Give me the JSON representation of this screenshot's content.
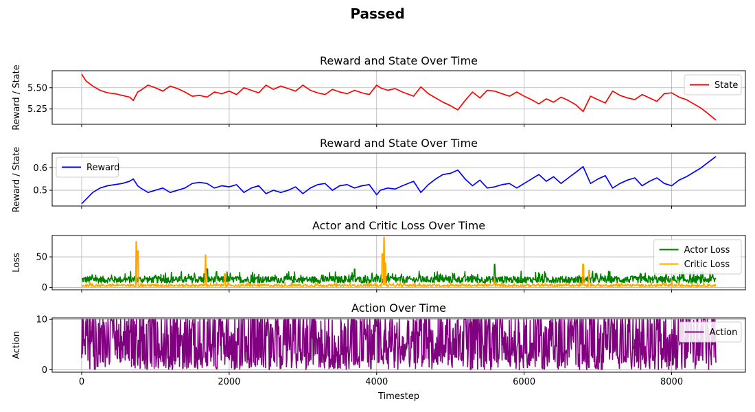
{
  "figure": {
    "title": "Passed"
  },
  "chart_data": [
    {
      "id": "state",
      "type": "line",
      "title": "Reward and State Over Time",
      "xlabel": "",
      "ylabel": "Reward / State",
      "xlim": [
        -400,
        9000
      ],
      "ylim": [
        5.07,
        5.7
      ],
      "xticks": [
        0,
        2000,
        4000,
        6000,
        8000
      ],
      "yticks": [
        5.25,
        5.5
      ],
      "ytick_labels": [
        "5.25",
        "5.50"
      ],
      "show_xtick_labels": false,
      "grid": true,
      "legend": "top-right",
      "series": [
        {
          "name": "State",
          "color": "#ff0000",
          "x": [
            0,
            60,
            150,
            250,
            350,
            450,
            550,
            650,
            700,
            760,
            800,
            900,
            1000,
            1100,
            1200,
            1300,
            1400,
            1500,
            1600,
            1700,
            1800,
            1900,
            2000,
            2100,
            2200,
            2300,
            2400,
            2500,
            2600,
            2700,
            2800,
            2900,
            3000,
            3100,
            3200,
            3300,
            3400,
            3500,
            3600,
            3700,
            3800,
            3900,
            4000,
            4050,
            4150,
            4250,
            4350,
            4500,
            4600,
            4700,
            4800,
            4900,
            5000,
            5100,
            5200,
            5300,
            5400,
            5500,
            5600,
            5700,
            5800,
            5900,
            6000,
            6100,
            6200,
            6300,
            6400,
            6500,
            6600,
            6700,
            6800,
            6900,
            7000,
            7100,
            7200,
            7300,
            7400,
            7500,
            7600,
            7700,
            7800,
            7900,
            8000,
            8100,
            8200,
            8300,
            8400,
            8500,
            8600
          ],
          "y": [
            5.66,
            5.58,
            5.52,
            5.47,
            5.44,
            5.43,
            5.41,
            5.39,
            5.35,
            5.45,
            5.47,
            5.53,
            5.5,
            5.46,
            5.52,
            5.49,
            5.45,
            5.4,
            5.41,
            5.39,
            5.45,
            5.43,
            5.46,
            5.42,
            5.5,
            5.47,
            5.44,
            5.53,
            5.48,
            5.52,
            5.49,
            5.46,
            5.53,
            5.47,
            5.44,
            5.42,
            5.48,
            5.45,
            5.43,
            5.47,
            5.44,
            5.42,
            5.53,
            5.5,
            5.47,
            5.49,
            5.45,
            5.4,
            5.51,
            5.43,
            5.38,
            5.33,
            5.29,
            5.24,
            5.35,
            5.45,
            5.38,
            5.47,
            5.46,
            5.43,
            5.4,
            5.45,
            5.4,
            5.36,
            5.31,
            5.37,
            5.33,
            5.39,
            5.35,
            5.3,
            5.22,
            5.4,
            5.36,
            5.32,
            5.46,
            5.41,
            5.38,
            5.36,
            5.42,
            5.38,
            5.34,
            5.43,
            5.44,
            5.39,
            5.36,
            5.31,
            5.26,
            5.19,
            5.12
          ]
        }
      ]
    },
    {
      "id": "reward",
      "type": "line",
      "title": "Reward and State Over Time",
      "xlabel": "",
      "ylabel": "Reward / State",
      "xlim": [
        -400,
        9000
      ],
      "ylim": [
        0.43,
        0.665
      ],
      "xticks": [
        0,
        2000,
        4000,
        6000,
        8000
      ],
      "yticks": [
        0.5,
        0.6
      ],
      "ytick_labels": [
        "0.5",
        "0.6"
      ],
      "show_xtick_labels": false,
      "grid": true,
      "legend": "top-left",
      "series": [
        {
          "name": "Reward",
          "color": "#0000ff",
          "x": [
            0,
            60,
            150,
            250,
            350,
            450,
            550,
            650,
            700,
            760,
            800,
            900,
            1000,
            1100,
            1200,
            1300,
            1400,
            1500,
            1600,
            1700,
            1800,
            1900,
            2000,
            2100,
            2200,
            2300,
            2400,
            2500,
            2600,
            2700,
            2800,
            2900,
            3000,
            3100,
            3200,
            3300,
            3400,
            3500,
            3600,
            3700,
            3800,
            3900,
            4000,
            4050,
            4150,
            4250,
            4350,
            4500,
            4600,
            4700,
            4800,
            4900,
            5000,
            5100,
            5200,
            5300,
            5400,
            5500,
            5600,
            5700,
            5800,
            5900,
            6000,
            6100,
            6200,
            6300,
            6400,
            6500,
            6600,
            6700,
            6800,
            6900,
            7000,
            7100,
            7200,
            7300,
            7400,
            7500,
            7600,
            7700,
            7800,
            7900,
            8000,
            8100,
            8200,
            8300,
            8400,
            8500,
            8600
          ],
          "y": [
            0.44,
            0.46,
            0.49,
            0.51,
            0.52,
            0.525,
            0.53,
            0.54,
            0.55,
            0.52,
            0.51,
            0.49,
            0.5,
            0.51,
            0.49,
            0.5,
            0.51,
            0.53,
            0.535,
            0.53,
            0.51,
            0.52,
            0.515,
            0.525,
            0.49,
            0.51,
            0.52,
            0.485,
            0.5,
            0.49,
            0.5,
            0.515,
            0.485,
            0.51,
            0.525,
            0.53,
            0.5,
            0.52,
            0.525,
            0.51,
            0.52,
            0.525,
            0.48,
            0.5,
            0.51,
            0.505,
            0.52,
            0.54,
            0.49,
            0.525,
            0.55,
            0.57,
            0.575,
            0.59,
            0.55,
            0.52,
            0.545,
            0.51,
            0.515,
            0.525,
            0.53,
            0.51,
            0.53,
            0.55,
            0.57,
            0.54,
            0.56,
            0.53,
            0.555,
            0.58,
            0.605,
            0.53,
            0.55,
            0.565,
            0.51,
            0.53,
            0.545,
            0.555,
            0.52,
            0.54,
            0.555,
            0.53,
            0.52,
            0.545,
            0.56,
            0.58,
            0.6,
            0.625,
            0.65
          ]
        }
      ]
    },
    {
      "id": "loss",
      "type": "line",
      "title": "Actor and Critic Loss Over Time",
      "xlabel": "",
      "ylabel": "Loss",
      "xlim": [
        -400,
        9000
      ],
      "ylim": [
        -4,
        85
      ],
      "xticks": [
        0,
        2000,
        4000,
        6000,
        8000
      ],
      "yticks": [
        0,
        50
      ],
      "ytick_labels": [
        "0",
        "50"
      ],
      "show_xtick_labels": false,
      "grid": true,
      "legend": "top-right",
      "series": [
        {
          "name": "Actor Loss",
          "color": "#008000",
          "noise": {
            "x_start": 0,
            "x_end": 8600,
            "base": 7,
            "amp": 14,
            "spikes": [
              [
                5600,
                38
              ],
              [
                4100,
                27
              ],
              [
                1700,
                30
              ],
              [
                3700,
                30
              ]
            ]
          }
        },
        {
          "name": "Critic Loss",
          "color": "#ffa500",
          "noise": {
            "x_start": 0,
            "x_end": 8600,
            "base": 1,
            "amp": 5,
            "spikes": [
              [
                740,
                75
              ],
              [
                760,
                60
              ],
              [
                1680,
                53
              ],
              [
                1940,
                22
              ],
              [
                4080,
                55
              ],
              [
                4100,
                82
              ],
              [
                4120,
                40
              ],
              [
                5600,
                14
              ],
              [
                6800,
                38
              ],
              [
                6880,
                28
              ],
              [
                8000,
                12
              ]
            ]
          }
        }
      ]
    },
    {
      "id": "action",
      "type": "line",
      "title": "Action Over Time",
      "xlabel": "Timestep",
      "ylabel": "Action",
      "xlim": [
        -400,
        9000
      ],
      "ylim": [
        -0.5,
        10.3
      ],
      "xticks": [
        0,
        2000,
        4000,
        6000,
        8000
      ],
      "xtick_labels": [
        "0",
        "2000",
        "4000",
        "6000",
        "8000"
      ],
      "yticks": [
        0,
        10
      ],
      "ytick_labels": [
        "0",
        "10"
      ],
      "show_xtick_labels": true,
      "grid": true,
      "legend": "top-right",
      "series": [
        {
          "name": "Action",
          "color": "#800080",
          "noise": {
            "x_start": 0,
            "x_end": 8600,
            "min": 0,
            "max": 10
          }
        }
      ]
    }
  ]
}
